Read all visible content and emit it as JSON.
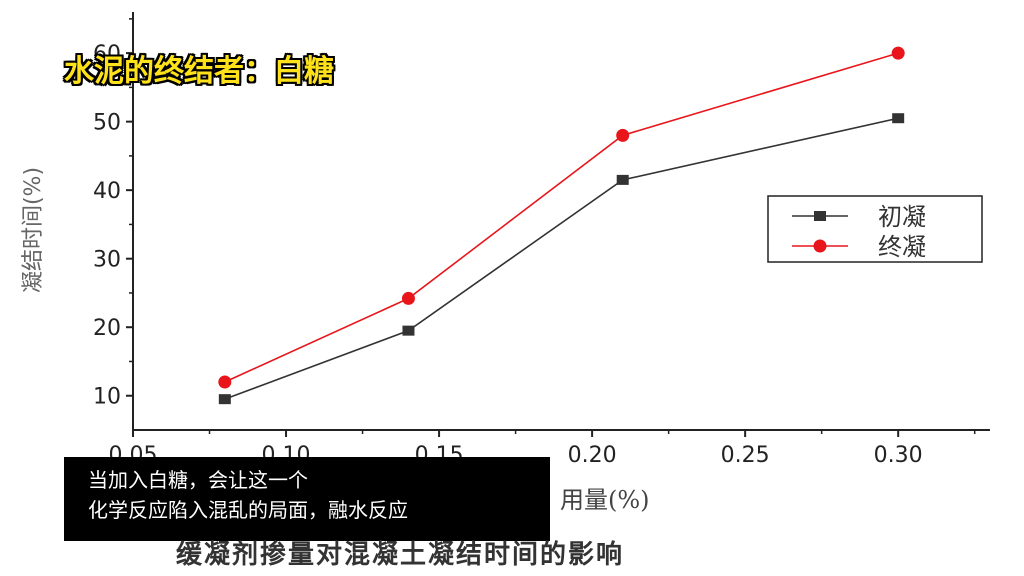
{
  "video_title": "水泥的终结者：白糖",
  "subtitle": {
    "line1": "当加入白糖，会让这一个",
    "line2": "化学反应陷入混乱的局面，融水反应"
  },
  "caption": "缓凝剂掺量对混凝土凝结时间的影响",
  "chart_data": {
    "type": "line",
    "title": "",
    "xlabel": "用量(%)",
    "ylabel": "凝结时间(%)",
    "xlim": [
      0.05,
      0.33
    ],
    "ylim": [
      5,
      66
    ],
    "x_ticks": [
      "0.05",
      "0.10",
      "0.15",
      "0.20",
      "0.25",
      "0.30"
    ],
    "y_ticks": [
      "10",
      "20",
      "30",
      "40",
      "50",
      "60"
    ],
    "legend_position": "right",
    "x": [
      0.08,
      0.14,
      0.21,
      0.3
    ],
    "series": [
      {
        "name": "初凝",
        "values": [
          9.5,
          19.5,
          41.5,
          50.5
        ],
        "color": "#333333",
        "marker": "square"
      },
      {
        "name": "终凝",
        "values": [
          12,
          24.2,
          48,
          60
        ],
        "color": "#e8161b",
        "marker": "circle"
      }
    ]
  }
}
